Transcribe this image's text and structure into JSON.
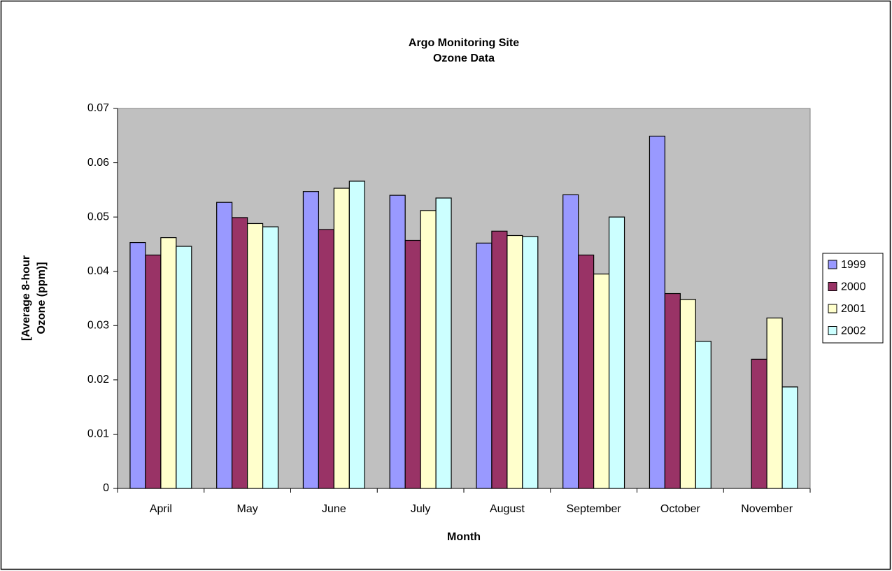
{
  "chart_data": {
    "type": "bar",
    "title": "Argo Monitoring Site",
    "subtitle": "Ozone Data",
    "x_label": "Month",
    "y_label": [
      "[Average 8-hour",
      "Ozone (ppm)]"
    ],
    "categories": [
      "April",
      "May",
      "June",
      "July",
      "August",
      "September",
      "October",
      "November"
    ],
    "series": [
      {
        "name": "1999",
        "color": "#9999ff",
        "values": [
          0.0453,
          0.0527,
          0.0547,
          0.054,
          0.0452,
          0.0541,
          0.0649,
          null
        ]
      },
      {
        "name": "2000",
        "color": "#993366",
        "values": [
          0.043,
          0.0499,
          0.0477,
          0.0457,
          0.0474,
          0.043,
          0.0359,
          0.0238
        ]
      },
      {
        "name": "2001",
        "color": "#ffffcc",
        "values": [
          0.0462,
          0.0488,
          0.0553,
          0.0512,
          0.0466,
          0.0395,
          0.0348,
          0.0314
        ]
      },
      {
        "name": "2002",
        "color": "#ccffff",
        "values": [
          0.0446,
          0.0482,
          0.0566,
          0.0535,
          0.0464,
          0.05,
          0.0271,
          0.0187
        ]
      }
    ],
    "ylim": [
      0,
      0.07
    ],
    "yticks": [
      0,
      0.01,
      0.02,
      0.03,
      0.04,
      0.05,
      0.06,
      0.07
    ],
    "legend": "right",
    "plot_background": "#c0c0c0"
  }
}
